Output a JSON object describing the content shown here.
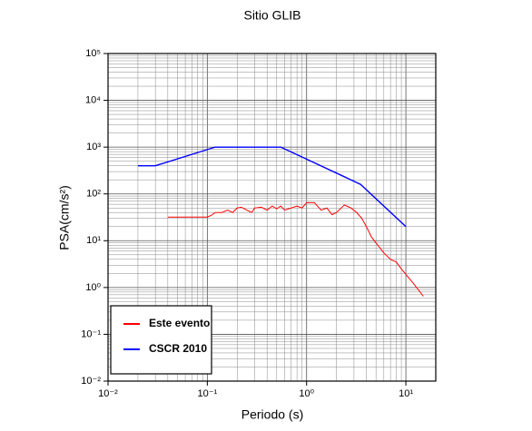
{
  "chart_data": {
    "type": "line",
    "title": "Sitio GLIB",
    "xlabel": "Periodo (s)",
    "ylabel": "PSA(cm/s²)",
    "xscale": "log",
    "yscale": "log",
    "grid": true,
    "minor_grid": true,
    "legend_loc": "lower left",
    "xlim": [
      0.01,
      20
    ],
    "ylim": [
      0.01,
      100000
    ],
    "xticks": [
      {
        "value": 0.01,
        "label": "10⁻²"
      },
      {
        "value": 0.1,
        "label": "10⁻¹"
      },
      {
        "value": 1,
        "label": "10⁰"
      },
      {
        "value": 10,
        "label": "10¹"
      }
    ],
    "yticks": [
      {
        "value": 0.01,
        "label": "10⁻²"
      },
      {
        "value": 0.1,
        "label": "10⁻¹"
      },
      {
        "value": 1,
        "label": "10⁰"
      },
      {
        "value": 10,
        "label": "10¹"
      },
      {
        "value": 100,
        "label": "10²"
      },
      {
        "value": 1000,
        "label": "10³"
      },
      {
        "value": 10000,
        "label": "10⁴"
      },
      {
        "value": 100000,
        "label": "10⁵"
      }
    ],
    "series": [
      {
        "name": "Este evento",
        "color": "#ff0000",
        "x": [
          0.04,
          0.06,
          0.08,
          0.1,
          0.11,
          0.12,
          0.14,
          0.16,
          0.18,
          0.2,
          0.22,
          0.25,
          0.28,
          0.3,
          0.35,
          0.4,
          0.45,
          0.5,
          0.55,
          0.6,
          0.7,
          0.8,
          0.9,
          1.0,
          1.2,
          1.4,
          1.6,
          1.8,
          2.0,
          2.4,
          2.8,
          3.2,
          3.6,
          4.0,
          4.5,
          5,
          6,
          7,
          8,
          9,
          10,
          12,
          15
        ],
        "values": [
          32,
          32,
          32,
          32,
          35,
          40,
          40,
          45,
          40,
          50,
          52,
          45,
          40,
          50,
          52,
          45,
          55,
          48,
          55,
          45,
          50,
          55,
          50,
          65,
          65,
          45,
          50,
          36,
          40,
          58,
          50,
          40,
          30,
          20,
          12,
          9,
          5.5,
          4,
          3.5,
          2.5,
          1.9,
          1.2,
          0.65
        ]
      },
      {
        "name": "CSCR 2010",
        "color": "#0000ff",
        "x": [
          0.02,
          0.03,
          0.12,
          0.55,
          3.5,
          10
        ],
        "values": [
          400,
          400,
          1000,
          1000,
          160,
          20
        ]
      }
    ]
  }
}
